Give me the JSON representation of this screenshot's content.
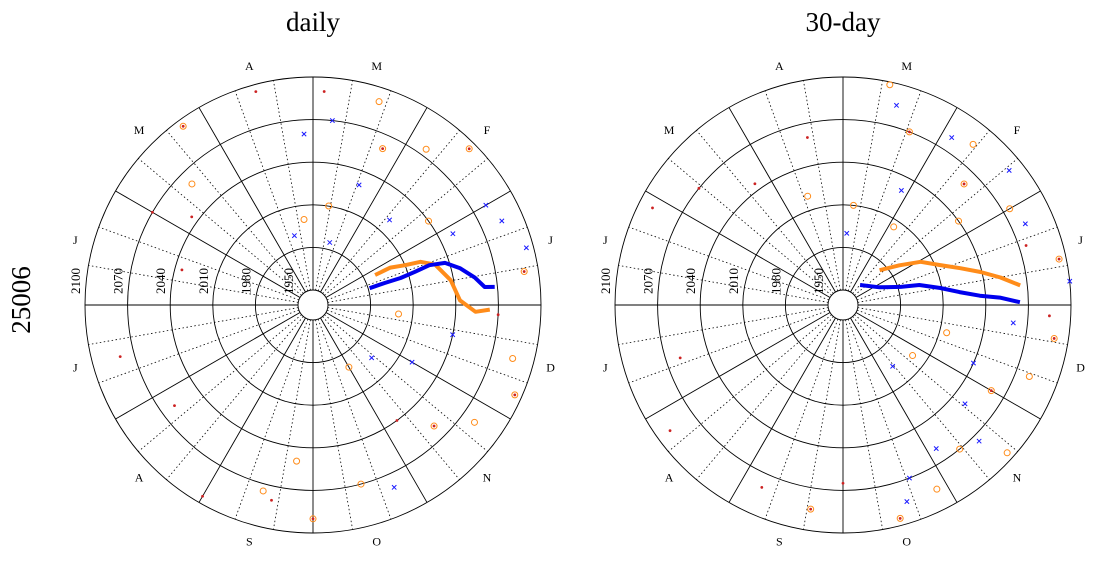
{
  "figure_label": "25006",
  "chart_data": [
    {
      "type": "polar",
      "title": "daily",
      "categories": [
        "J",
        "F",
        "M",
        "A",
        "M",
        "J",
        "J",
        "A",
        "S",
        "O",
        "N",
        "D"
      ],
      "xlim": [
        0,
        12
      ],
      "rlim": [
        1950,
        2100
      ],
      "rticks": [
        1950,
        1980,
        2010,
        2040,
        2070,
        2100
      ],
      "grid": true,
      "series": [
        {
          "marker": "circle",
          "color": "#ff8c1a",
          "x": [
            2.4,
            2.2,
            1.8,
            1.5,
            1.2,
            0.3,
            11.5,
            11.2,
            10.8,
            10.5,
            9.5,
            9.0,
            8.8,
            4.5,
            4.2,
            2.7,
            3.2,
            11.8,
            10.0,
            8.5
          ],
          "values": [
            2090,
            2060,
            2075,
            2095,
            2040,
            2090,
            2085,
            2095,
            2080,
            2060,
            2070,
            2090,
            2050,
            2060,
            2095,
            2010,
            2000,
            2000,
            1990,
            2075
          ]
        },
        {
          "marker": "cross",
          "color": "#1a1aff",
          "x": [
            2.8,
            2.3,
            1.6,
            1.0,
            0.5,
            0.9,
            11.6,
            11.0,
            10.6,
            3.5,
            2.5,
            0.8,
            9.8,
            3.1
          ],
          "values": [
            2070,
            2030,
            2020,
            2080,
            2095,
            2050,
            2040,
            2020,
            1995,
            1990,
            1985,
            2085,
            2080,
            2060
          ]
        },
        {
          "marker": "dot",
          "color": "#cc2222",
          "x": [
            2.2,
            1.5,
            0.3,
            11.2,
            10.5,
            9.0,
            4.2,
            5.0,
            4.8,
            3.5,
            2.9,
            8.6,
            8.0,
            7.2,
            6.5,
            5.5,
            10.2,
            11.9
          ],
          "values": [
            2060,
            2095,
            2090,
            2095,
            2060,
            2090,
            2095,
            2070,
            2045,
            2095,
            2090,
            2080,
            2095,
            2060,
            2080,
            2035,
            2040,
            2070
          ]
        },
        {
          "marker": "line",
          "color": "#ff8c1a",
          "x": [
            0.86,
            0.86,
            0.78,
            0.73,
            0.61,
            0.34,
            0.06,
            11.92,
            11.95
          ],
          "values": [
            1988,
            2000,
            2010,
            2021,
            2030,
            2038,
            2043,
            2054,
            2064
          ]
        },
        {
          "marker": "line",
          "color": "#0000ee",
          "x": [
            0.55,
            0.57,
            0.57,
            0.6,
            0.63,
            0.59,
            0.47,
            0.32,
            0.2,
            0.19
          ],
          "values": [
            1981,
            1992,
            2004,
            2015,
            2026,
            2037,
            2046,
            2055,
            2061,
            2068
          ]
        }
      ]
    },
    {
      "type": "polar",
      "title": "30-day",
      "categories": [
        "J",
        "F",
        "M",
        "A",
        "M",
        "J",
        "J",
        "A",
        "S",
        "O",
        "N",
        "D"
      ],
      "xlim": [
        0,
        12
      ],
      "rlim": [
        1950,
        2100
      ],
      "rticks": [
        1950,
        1980,
        2010,
        2040,
        2070,
        2100
      ],
      "grid": true,
      "series": [
        {
          "marker": "circle",
          "color": "#ff8c1a",
          "x": [
            2.6,
            2.3,
            1.7,
            1.5,
            1.2,
            1.0,
            0.4,
            11.7,
            11.3,
            11.0,
            10.6,
            10.3,
            9.9,
            9.5,
            8.7,
            3.6,
            2.8,
            1.9,
            11.5,
            10.8
          ],
          "values": [
            2098,
            2070,
            2085,
            2060,
            2040,
            2075,
            2095,
            2090,
            2080,
            2060,
            2095,
            2070,
            2085,
            2095,
            2085,
            2020,
            2010,
            2005,
            2015,
            2000
          ]
        },
        {
          "marker": "cross",
          "color": "#1a1aff",
          "x": [
            2.5,
            2.1,
            1.9,
            1.3,
            0.8,
            11.8,
            11.2,
            10.7,
            10.5,
            10.1,
            9.7,
            9.6,
            10.3,
            2.9,
            0.2
          ],
          "values": [
            2085,
            2030,
            2080,
            2090,
            2080,
            2060,
            2040,
            2050,
            2075,
            2060,
            2070,
            2085,
            1995,
            1990,
            2100
          ]
        },
        {
          "marker": "dot",
          "color": "#cc2222",
          "x": [
            2.3,
            1.5,
            0.4,
            11.7,
            11.0,
            9.5,
            8.7,
            4.7,
            4.2,
            5.1,
            3.4,
            7.2,
            6.6,
            8.2,
            9.0,
            11.9,
            0.6
          ],
          "values": [
            2070,
            2060,
            2095,
            2090,
            2060,
            2095,
            2085,
            2070,
            2045,
            2090,
            2060,
            2090,
            2060,
            2080,
            2065,
            2085,
            2075
          ]
        },
        {
          "marker": "line",
          "color": "#ff8c1a",
          "x": [
            1.45,
            1.17,
            0.97,
            0.75,
            0.58,
            0.45,
            0.33,
            0.21
          ],
          "values": [
            1975,
            1988,
            2002,
            2013,
            2026,
            2039,
            2052,
            2065
          ]
        },
        {
          "marker": "line",
          "color": "#0000ee",
          "x": [
            1.65,
            0.86,
            0.58,
            0.49,
            0.33,
            0.21,
            0.13,
            0.09,
            0.03
          ],
          "values": [
            1958,
            1968,
            1982,
            1995,
            2009,
            2022,
            2036,
            2050,
            2064
          ]
        }
      ]
    }
  ]
}
